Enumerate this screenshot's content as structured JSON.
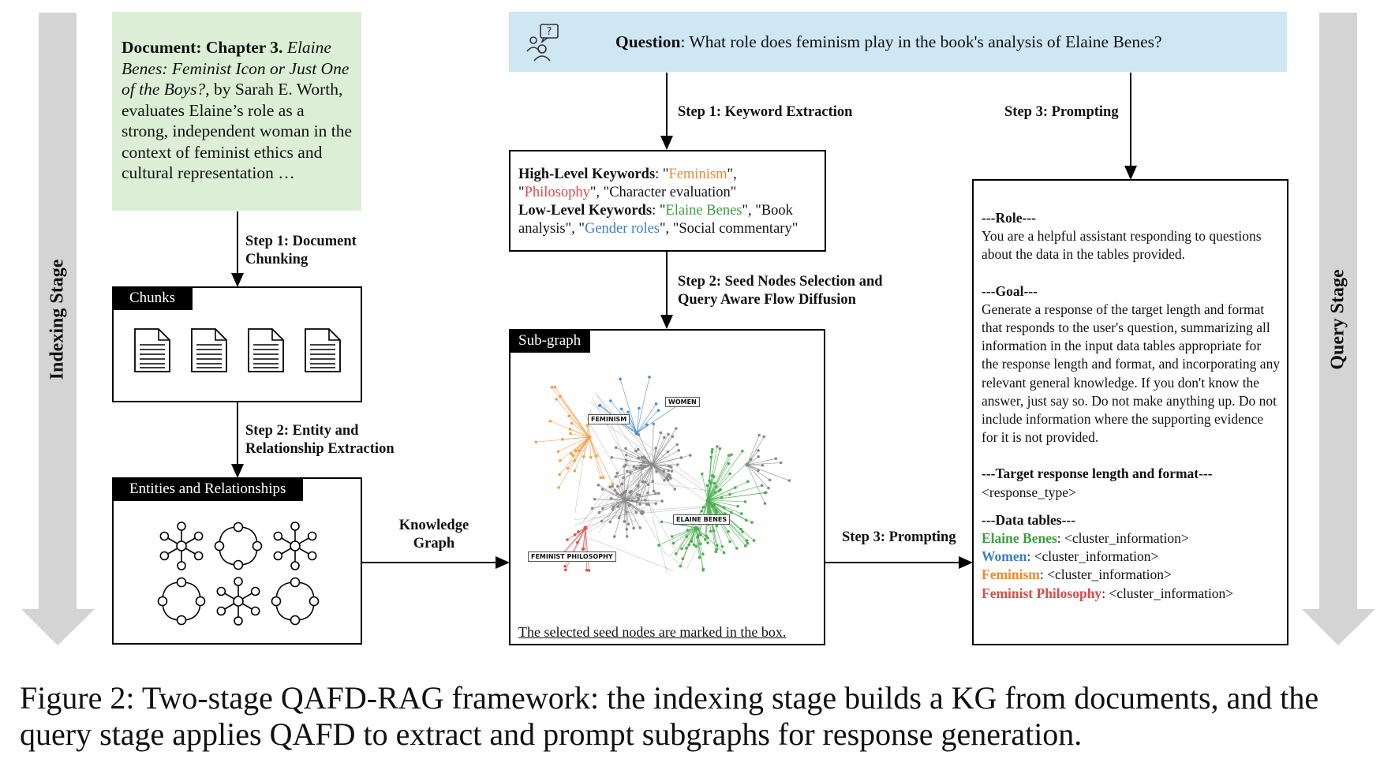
{
  "stages": {
    "indexing": "Indexing Stage",
    "query": "Query Stage"
  },
  "document": {
    "label": "Document: Chapter 3.",
    "title": "Elaine Benes: Feminist Icon or Just One of the Boys?",
    "body": ", by Sarah E. Worth, evaluates Elaine’s role as a strong, independent woman in the context of feminist ethics and cultural representation …"
  },
  "indexing_steps": {
    "step1": [
      "Step 1: Document",
      "Chunking"
    ],
    "step2": [
      "Step 2: Entity and",
      "Relationship Extraction"
    ],
    "kg": [
      "Knowledge",
      "Graph"
    ]
  },
  "chunks": {
    "label": "Chunks",
    "count": 4
  },
  "entities": {
    "label": "Entities and Relationships"
  },
  "question": {
    "label": "Question",
    "text": ": What role does feminism play in the book's analysis of Elaine Benes?"
  },
  "query_steps": {
    "step1": "Step 1: Keyword Extraction",
    "step2": [
      "Step 2: Seed Nodes Selection and",
      "Query Aware Flow Diffusion"
    ],
    "step3_top": "Step 3: Prompting",
    "step3_mid": "Step 3: Prompting"
  },
  "keywords": {
    "high_label": "High-Level Keywords",
    "low_label": "Low-Level Keywords",
    "high": [
      {
        "text": "Feminism",
        "color": "#ee8a2a"
      },
      {
        "text": "Philosophy",
        "color": "#d94a4a"
      },
      {
        "text": "Character evaluation",
        "color": "#111111"
      }
    ],
    "low": [
      {
        "text": "Elaine Benes",
        "color": "#3a9e3a"
      },
      {
        "text": "Book analysis",
        "color": "#111111"
      },
      {
        "text": "Gender roles",
        "color": "#3b7fc4"
      },
      {
        "text": "Social commentary",
        "color": "#111111"
      }
    ]
  },
  "subgraph": {
    "label": "Sub-graph",
    "caption": "The selected seed nodes are marked in the box.",
    "seed_labels": {
      "feminism": "FEMINISM",
      "women": "WOMEN",
      "elaine": "ELAINE BENES",
      "feminist_philosophy": "FEMINIST PHILOSOPHY"
    },
    "colors": {
      "orange": "#f0a050",
      "blue": "#4a8fd0",
      "green": "#4caf50",
      "gray": "#8a8a8a",
      "red": "#d9534f"
    }
  },
  "prompt": {
    "role_h": "---Role---",
    "role": "You are a helpful assistant responding to questions about the data in the tables provided.",
    "goal_h": "---Goal---",
    "goal": "Generate a response of the target length and format that responds to the user's question, summarizing all information in the input data tables appropriate for the response length and format, and incorporating any relevant general knowledge. If you don't know the answer, just say so. Do not make anything up. Do not include information where the supporting evidence for it is not provided.",
    "target_h": "---Target response length and format---",
    "target": "<response_type>",
    "data_h": "---Data tables---",
    "tables": [
      {
        "name": "Elaine Benes",
        "value": ": <cluster_information>",
        "color": "#3a9e3a"
      },
      {
        "name": "Women",
        "value": ": <cluster_information>",
        "color": "#3b7fc4"
      },
      {
        "name": "Feminism",
        "value": ": <cluster_information>",
        "color": "#ee8a2a"
      },
      {
        "name": "Feminist Philosophy",
        "value": ": <cluster_information>",
        "color": "#d94a4a"
      }
    ]
  },
  "figure_caption": "Figure 2: Two-stage QAFD-RAG framework: the indexing stage builds a KG from documents, and the query stage applies QAFD to extract and prompt subgraphs for response generation."
}
